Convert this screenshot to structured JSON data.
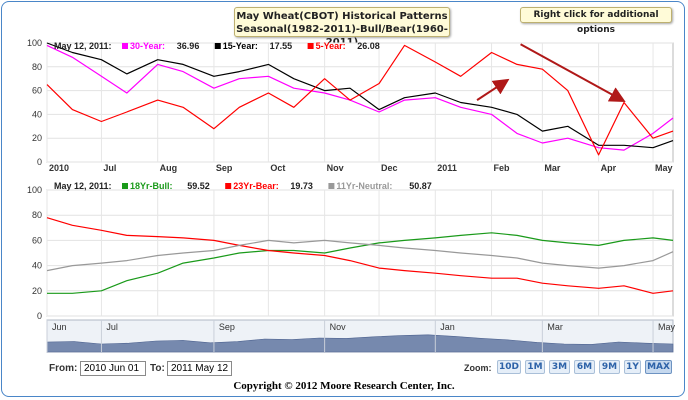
{
  "title_line1": "May Wheat(CBOT) Historical Patterns",
  "title_line2": "Seasonal(1982-2011)-Bull/Bear(1960-2011)",
  "options_text": "Right click for additional options",
  "top_legend": {
    "date": "May 12, 2011:",
    "items": [
      {
        "label": "30-Year:",
        "value": "36.96",
        "color": "#ff00ff"
      },
      {
        "label": "15-Year:",
        "value": "17.55",
        "color": "#000000"
      },
      {
        "label": "5-Year:",
        "value": "26.08",
        "color": "#ff0000"
      }
    ]
  },
  "bottom_legend": {
    "date": "May 12, 2011:",
    "items": [
      {
        "label": "18Yr-Bull:",
        "value": "59.52",
        "color": "#1a9a1a"
      },
      {
        "label": "23Yr-Bear:",
        "value": "19.73",
        "color": "#ff0000"
      },
      {
        "label": "11Yr-Neutral:",
        "value": "50.87",
        "color": "#999999"
      }
    ]
  },
  "from_label": "From:",
  "to_label": "To:",
  "from_value": "2010 Jun 01",
  "to_value": "2011 May 12",
  "zoom_label": "Zoom:",
  "zoom_buttons": [
    "10D",
    "1M",
    "3M",
    "6M",
    "9M",
    "1Y",
    "MAX"
  ],
  "zoom_selected": "MAX",
  "copyright": "Copyright © 2012 Moore Research Center, Inc.",
  "chart_data": [
    {
      "type": "line",
      "ylim": [
        0,
        100
      ],
      "yticks": [
        0,
        20,
        40,
        60,
        80,
        100
      ],
      "xlabels": [
        "2010",
        "Jul",
        "Aug",
        "Sep",
        "Oct",
        "Nov",
        "Dec",
        "2011",
        "Feb",
        "Mar",
        "Apr",
        "May"
      ],
      "grid": true,
      "x_dates": [
        "2010-06-01",
        "2010-06-15",
        "2010-07-01",
        "2010-07-15",
        "2010-08-01",
        "2010-08-15",
        "2010-09-01",
        "2010-09-15",
        "2010-10-01",
        "2010-10-15",
        "2010-11-01",
        "2010-11-15",
        "2010-12-01",
        "2010-12-15",
        "2011-01-01",
        "2011-01-15",
        "2011-02-01",
        "2011-02-15",
        "2011-03-01",
        "2011-03-15",
        "2011-04-01",
        "2011-04-15",
        "2011-05-01",
        "2011-05-12"
      ],
      "series": [
        {
          "name": "30-Year",
          "color": "#ff00ff",
          "values": [
            98,
            88,
            72,
            58,
            82,
            76,
            62,
            70,
            72,
            62,
            58,
            52,
            42,
            52,
            54,
            46,
            40,
            24,
            16,
            20,
            12,
            10,
            24,
            37
          ]
        },
        {
          "name": "15-Year",
          "color": "#000000",
          "values": [
            100,
            92,
            86,
            74,
            86,
            82,
            72,
            76,
            82,
            70,
            60,
            62,
            44,
            54,
            58,
            50,
            46,
            40,
            26,
            30,
            14,
            14,
            12,
            18
          ]
        },
        {
          "name": "5-Year",
          "color": "#ff0000",
          "values": [
            65,
            44,
            34,
            42,
            52,
            46,
            28,
            46,
            58,
            46,
            70,
            52,
            66,
            98,
            84,
            72,
            92,
            82,
            78,
            60,
            6,
            50,
            20,
            26
          ]
        }
      ],
      "annotations": [
        {
          "type": "arrow",
          "direction": "up",
          "color": "#b01818"
        },
        {
          "type": "arrow",
          "direction": "down",
          "color": "#b01818"
        }
      ]
    },
    {
      "type": "line",
      "ylim": [
        0,
        100
      ],
      "yticks": [
        0,
        20,
        40,
        60,
        80,
        100
      ],
      "xlabels": [],
      "grid": true,
      "x_dates": [
        "2010-06-01",
        "2010-06-15",
        "2010-07-01",
        "2010-07-15",
        "2010-08-01",
        "2010-08-15",
        "2010-09-01",
        "2010-09-15",
        "2010-10-01",
        "2010-10-15",
        "2010-11-01",
        "2010-11-15",
        "2010-12-01",
        "2010-12-15",
        "2011-01-01",
        "2011-01-15",
        "2011-02-01",
        "2011-02-15",
        "2011-03-01",
        "2011-03-15",
        "2011-04-01",
        "2011-04-15",
        "2011-05-01",
        "2011-05-12"
      ],
      "series": [
        {
          "name": "18Yr-Bull",
          "color": "#1a9a1a",
          "values": [
            18,
            18,
            20,
            28,
            34,
            42,
            46,
            50,
            52,
            52,
            50,
            54,
            58,
            60,
            62,
            64,
            66,
            64,
            60,
            58,
            56,
            60,
            62,
            60
          ]
        },
        {
          "name": "23Yr-Bear",
          "color": "#ff0000",
          "values": [
            78,
            72,
            68,
            64,
            63,
            62,
            60,
            56,
            52,
            50,
            48,
            44,
            38,
            36,
            34,
            32,
            30,
            30,
            26,
            24,
            22,
            24,
            18,
            20
          ]
        },
        {
          "name": "11Yr-Neutral",
          "color": "#999999",
          "values": [
            36,
            40,
            42,
            44,
            48,
            50,
            52,
            56,
            60,
            58,
            60,
            58,
            56,
            54,
            52,
            50,
            48,
            46,
            42,
            40,
            38,
            40,
            44,
            51
          ]
        }
      ]
    }
  ],
  "navigator": {
    "labels": [
      "Jun",
      "Jul",
      "Sep",
      "Nov",
      "Jan",
      "Mar",
      "May"
    ],
    "values": [
      40,
      42,
      30,
      34,
      45,
      48,
      36,
      42,
      55,
      52,
      60,
      58,
      66,
      72,
      76,
      68,
      58,
      50,
      38,
      30,
      28,
      40,
      34,
      30
    ]
  }
}
